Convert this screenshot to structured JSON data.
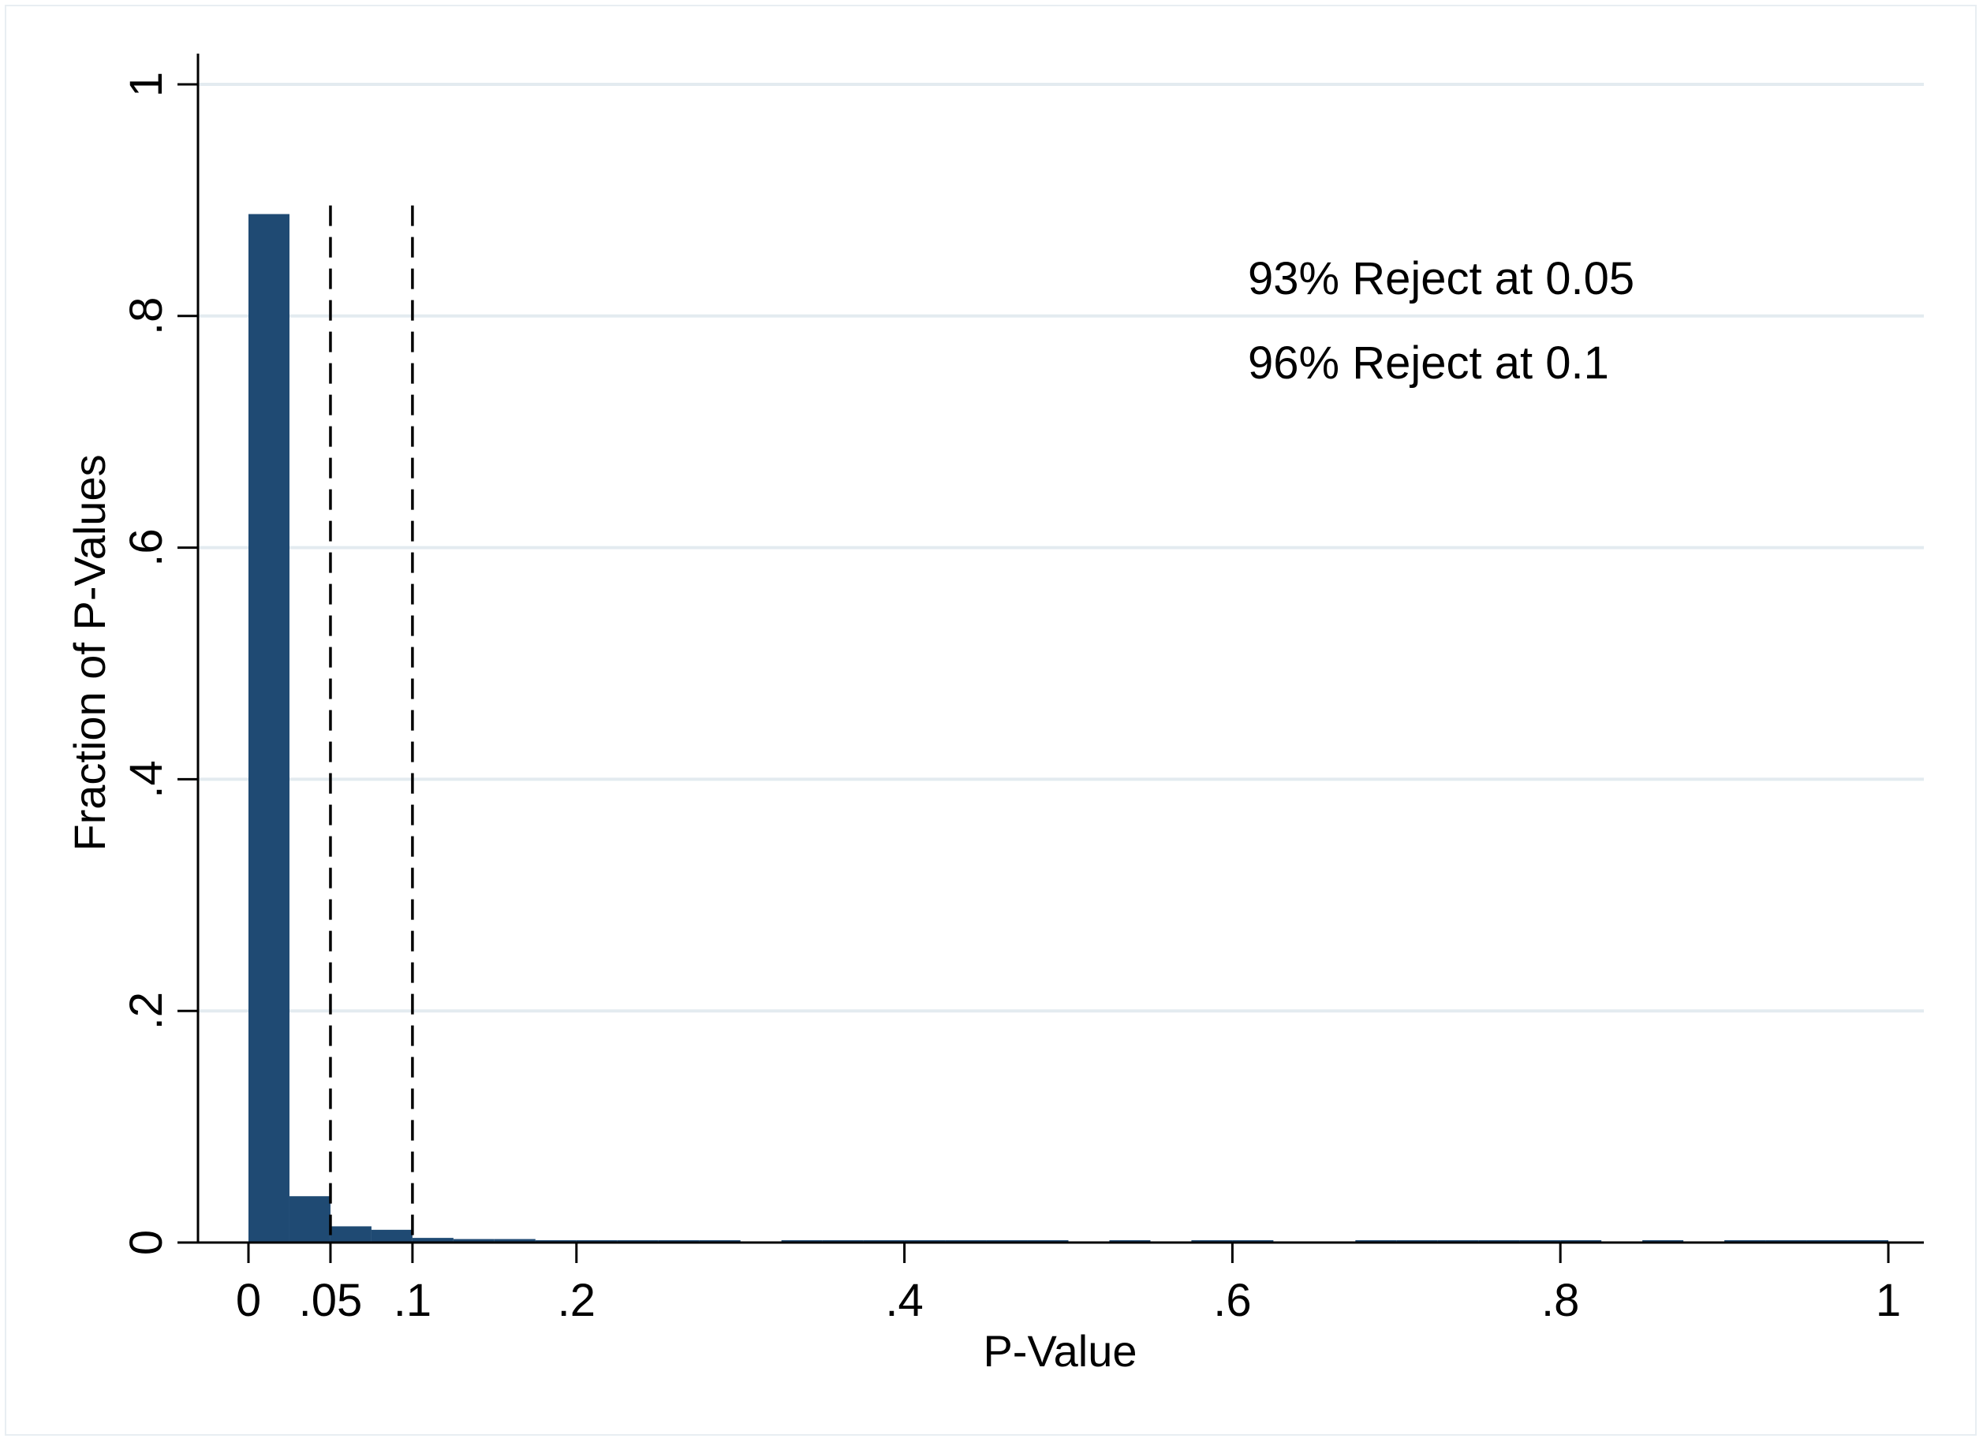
{
  "chart_data": {
    "type": "bar",
    "subtype": "histogram",
    "xlabel": "P-Value",
    "ylabel": "Fraction of P-Values",
    "xlim": [
      0,
      1
    ],
    "ylim": [
      0,
      1
    ],
    "bar_color": "#1f4a73",
    "grid": true,
    "bin_width": 0.025,
    "x_ticks": [
      {
        "value": 0,
        "label": "0"
      },
      {
        "value": 0.05,
        "label": ".05"
      },
      {
        "value": 0.1,
        "label": ".1"
      },
      {
        "value": 0.2,
        "label": ".2"
      },
      {
        "value": 0.4,
        "label": ".4"
      },
      {
        "value": 0.6,
        "label": ".6"
      },
      {
        "value": 0.8,
        "label": ".8"
      },
      {
        "value": 1,
        "label": "1"
      }
    ],
    "y_ticks": [
      {
        "value": 0,
        "label": "0"
      },
      {
        "value": 0.2,
        "label": ".2"
      },
      {
        "value": 0.4,
        "label": ".4"
      },
      {
        "value": 0.6,
        "label": ".6"
      },
      {
        "value": 0.8,
        "label": ".8"
      },
      {
        "value": 1,
        "label": "1"
      }
    ],
    "bins": [
      {
        "start": 0.0,
        "value": 0.888
      },
      {
        "start": 0.025,
        "value": 0.04
      },
      {
        "start": 0.05,
        "value": 0.014
      },
      {
        "start": 0.075,
        "value": 0.011
      },
      {
        "start": 0.1,
        "value": 0.004
      },
      {
        "start": 0.125,
        "value": 0.003
      },
      {
        "start": 0.15,
        "value": 0.003
      },
      {
        "start": 0.175,
        "value": 0.002
      },
      {
        "start": 0.2,
        "value": 0.002
      },
      {
        "start": 0.225,
        "value": 0.002
      },
      {
        "start": 0.25,
        "value": 0.002
      },
      {
        "start": 0.275,
        "value": 0.002
      },
      {
        "start": 0.3,
        "value": 0.0
      },
      {
        "start": 0.325,
        "value": 0.002
      },
      {
        "start": 0.35,
        "value": 0.002
      },
      {
        "start": 0.375,
        "value": 0.002
      },
      {
        "start": 0.4,
        "value": 0.002
      },
      {
        "start": 0.425,
        "value": 0.002
      },
      {
        "start": 0.45,
        "value": 0.002
      },
      {
        "start": 0.475,
        "value": 0.002
      },
      {
        "start": 0.5,
        "value": 0.0
      },
      {
        "start": 0.525,
        "value": 0.002
      },
      {
        "start": 0.55,
        "value": 0.0
      },
      {
        "start": 0.575,
        "value": 0.002
      },
      {
        "start": 0.6,
        "value": 0.002
      },
      {
        "start": 0.625,
        "value": 0.0
      },
      {
        "start": 0.65,
        "value": 0.0
      },
      {
        "start": 0.675,
        "value": 0.002
      },
      {
        "start": 0.7,
        "value": 0.002
      },
      {
        "start": 0.725,
        "value": 0.002
      },
      {
        "start": 0.75,
        "value": 0.002
      },
      {
        "start": 0.775,
        "value": 0.002
      },
      {
        "start": 0.8,
        "value": 0.002
      },
      {
        "start": 0.825,
        "value": 0.0
      },
      {
        "start": 0.85,
        "value": 0.002
      },
      {
        "start": 0.875,
        "value": 0.0
      },
      {
        "start": 0.9,
        "value": 0.002
      },
      {
        "start": 0.925,
        "value": 0.002
      },
      {
        "start": 0.95,
        "value": 0.002
      },
      {
        "start": 0.975,
        "value": 0.002
      }
    ],
    "reference_lines": [
      {
        "x": 0.05,
        "style": "dashed"
      },
      {
        "x": 0.1,
        "style": "dashed"
      }
    ],
    "annotations": [
      {
        "text": "93% Reject at 0.05"
      },
      {
        "text": "96% Reject at 0.1"
      }
    ]
  }
}
